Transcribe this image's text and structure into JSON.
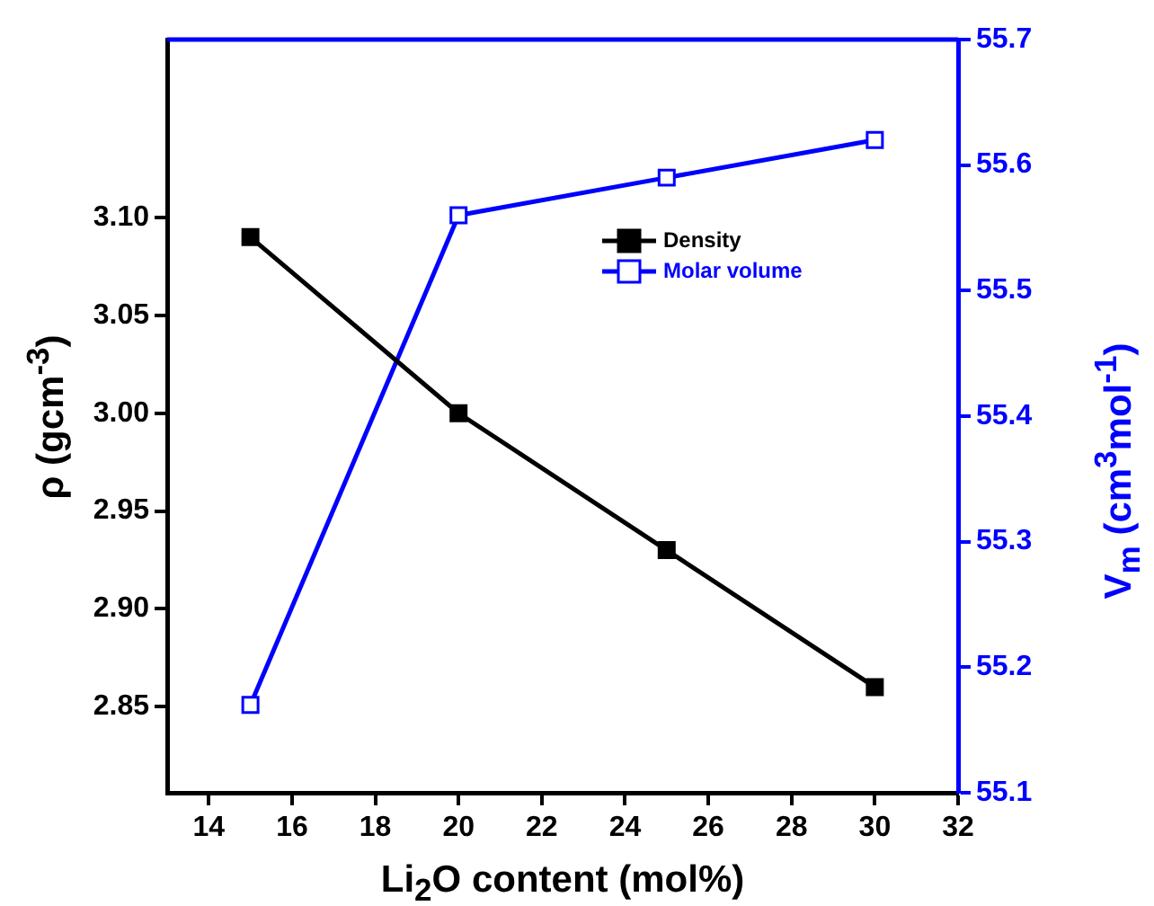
{
  "chart_data": {
    "type": "line",
    "xlabel": "Li$_{2}$O content (mol%)",
    "ylabel": "ρ (gcm$^{-3}$)",
    "y2label": "V$_{m}$ (cm$^{3}$mol$^{-1}$)",
    "x": [
      15,
      20,
      25,
      30
    ],
    "series": [
      {
        "name": "Density",
        "color": "#000000",
        "values": [
          3.09,
          3.0,
          2.93,
          2.86
        ]
      },
      {
        "name": "Molar volume",
        "color": "#0000ff",
        "axis": "y2",
        "values": [
          55.17,
          55.56,
          55.59,
          55.62
        ]
      }
    ],
    "xlim": [
      13,
      32
    ],
    "xticks": [
      14,
      16,
      18,
      20,
      22,
      24,
      26,
      28,
      30,
      32
    ],
    "ylim": [
      2.806,
      3.191
    ],
    "yticks": [
      2.85,
      {
        "value": 2.9,
        "label": "2.90"
      },
      2.95,
      {
        "value": 3.0,
        "label": "3.00"
      },
      3.05,
      {
        "value": 3.1,
        "label": "3.10"
      }
    ],
    "y2lim": [
      55.1,
      55.7
    ],
    "y2ticks": [
      55.1,
      55.2,
      55.3,
      55.4,
      55.5,
      55.6,
      55.7
    ],
    "grid": false,
    "legend": "top right",
    "marker": "square",
    "line_style": "solid"
  }
}
